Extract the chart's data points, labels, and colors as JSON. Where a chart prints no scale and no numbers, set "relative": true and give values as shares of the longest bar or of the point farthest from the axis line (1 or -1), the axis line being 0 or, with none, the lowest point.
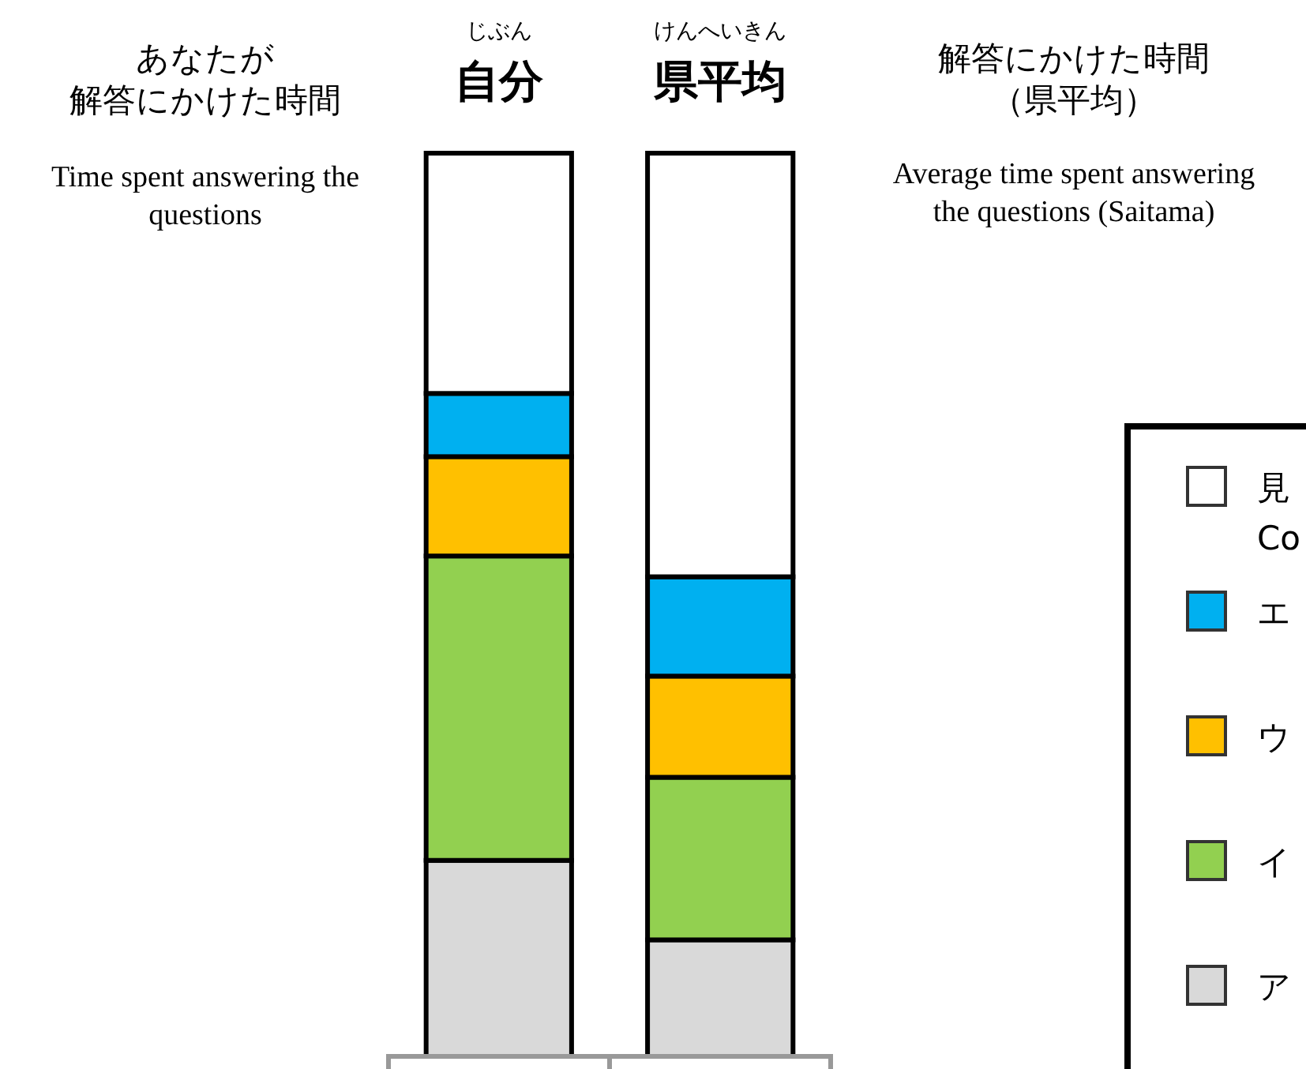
{
  "chart_data": {
    "type": "bar",
    "stacked": true,
    "relative": true,
    "legend": "right",
    "categories": [
      "自分",
      "県平均"
    ],
    "series": [
      {
        "name": "ア",
        "color": "#d9d9d9",
        "values": [
          0.217,
          0.129
        ]
      },
      {
        "name": "イ",
        "color": "#92d050",
        "values": [
          0.337,
          0.18
        ]
      },
      {
        "name": "ウ",
        "color": "#ffc000",
        "values": [
          0.11,
          0.112
        ]
      },
      {
        "name": "エ",
        "color": "#00b0f0",
        "values": [
          0.07,
          0.11
        ]
      },
      {
        "name": "見\nCo",
        "color": "#ffffff",
        "values": [
          0.266,
          0.469
        ]
      }
    ],
    "annotations": [
      "じぶん",
      "けんへいきん",
      "あなたが解答にかけた時間",
      "Time spent answering the\nquestions",
      "解答にかけた時間（県平均）",
      "Average time spent answering\nthe questions (Saitama)"
    ]
  }
}
